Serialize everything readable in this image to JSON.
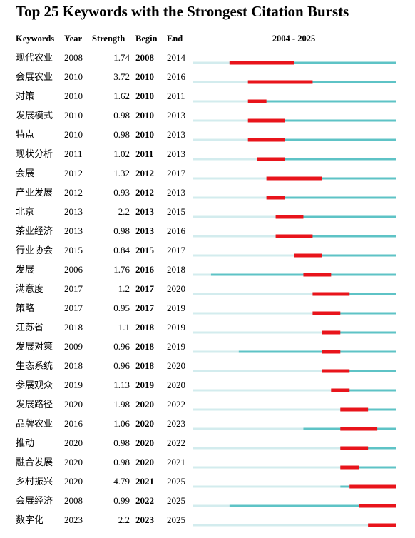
{
  "title": "Top 25 Keywords with the Strongest Citation Bursts",
  "header": [
    "Keywords",
    "Year",
    "Strength",
    "Begin",
    "End"
  ],
  "timeline": {
    "label": "2004 - 2025",
    "start": 2004,
    "end": 2025
  },
  "rows": [
    {
      "keyword": "现代农业",
      "year": 2008,
      "strength": 1.74,
      "begin": 2008,
      "end": 2014
    },
    {
      "keyword": "会展农业",
      "year": 2010,
      "strength": 3.72,
      "begin": 2010,
      "end": 2016
    },
    {
      "keyword": "对策",
      "year": 2010,
      "strength": 1.62,
      "begin": 2010,
      "end": 2011
    },
    {
      "keyword": "发展模式",
      "year": 2010,
      "strength": 0.98,
      "begin": 2010,
      "end": 2013
    },
    {
      "keyword": "特点",
      "year": 2010,
      "strength": 0.98,
      "begin": 2010,
      "end": 2013
    },
    {
      "keyword": "现状分析",
      "year": 2011,
      "strength": 1.02,
      "begin": 2011,
      "end": 2013
    },
    {
      "keyword": "会展",
      "year": 2012,
      "strength": 1.32,
      "begin": 2012,
      "end": 2017
    },
    {
      "keyword": "产业发展",
      "year": 2012,
      "strength": 0.93,
      "begin": 2012,
      "end": 2013
    },
    {
      "keyword": "北京",
      "year": 2013,
      "strength": 2.2,
      "begin": 2013,
      "end": 2015
    },
    {
      "keyword": "茶业经济",
      "year": 2013,
      "strength": 0.98,
      "begin": 2013,
      "end": 2016
    },
    {
      "keyword": "行业协会",
      "year": 2015,
      "strength": 0.84,
      "begin": 2015,
      "end": 2017
    },
    {
      "keyword": "发展",
      "year": 2006,
      "strength": 1.76,
      "begin": 2016,
      "end": 2018
    },
    {
      "keyword": "满意度",
      "year": 2017,
      "strength": 1.2,
      "begin": 2017,
      "end": 2020
    },
    {
      "keyword": "策略",
      "year": 2017,
      "strength": 0.95,
      "begin": 2017,
      "end": 2019
    },
    {
      "keyword": "江苏省",
      "year": 2018,
      "strength": 1.1,
      "begin": 2018,
      "end": 2019
    },
    {
      "keyword": "发展对策",
      "year": 2009,
      "strength": 0.96,
      "begin": 2018,
      "end": 2019
    },
    {
      "keyword": "生态系统",
      "year": 2018,
      "strength": 0.96,
      "begin": 2018,
      "end": 2020
    },
    {
      "keyword": "参展观众",
      "year": 2019,
      "strength": 1.13,
      "begin": 2019,
      "end": 2020
    },
    {
      "keyword": "发展路径",
      "year": 2020,
      "strength": 1.98,
      "begin": 2020,
      "end": 2022
    },
    {
      "keyword": "品牌农业",
      "year": 2016,
      "strength": 1.06,
      "begin": 2020,
      "end": 2023
    },
    {
      "keyword": "推动",
      "year": 2020,
      "strength": 0.98,
      "begin": 2020,
      "end": 2022
    },
    {
      "keyword": "融合发展",
      "year": 2020,
      "strength": 0.98,
      "begin": 2020,
      "end": 2021
    },
    {
      "keyword": "乡村振兴",
      "year": 2020,
      "strength": 4.79,
      "begin": 2021,
      "end": 2025
    },
    {
      "keyword": "会展经济",
      "year": 2008,
      "strength": 0.99,
      "begin": 2022,
      "end": 2025
    },
    {
      "keyword": "数字化",
      "year": 2023,
      "strength": 2.2,
      "begin": 2023,
      "end": 2025
    }
  ]
}
